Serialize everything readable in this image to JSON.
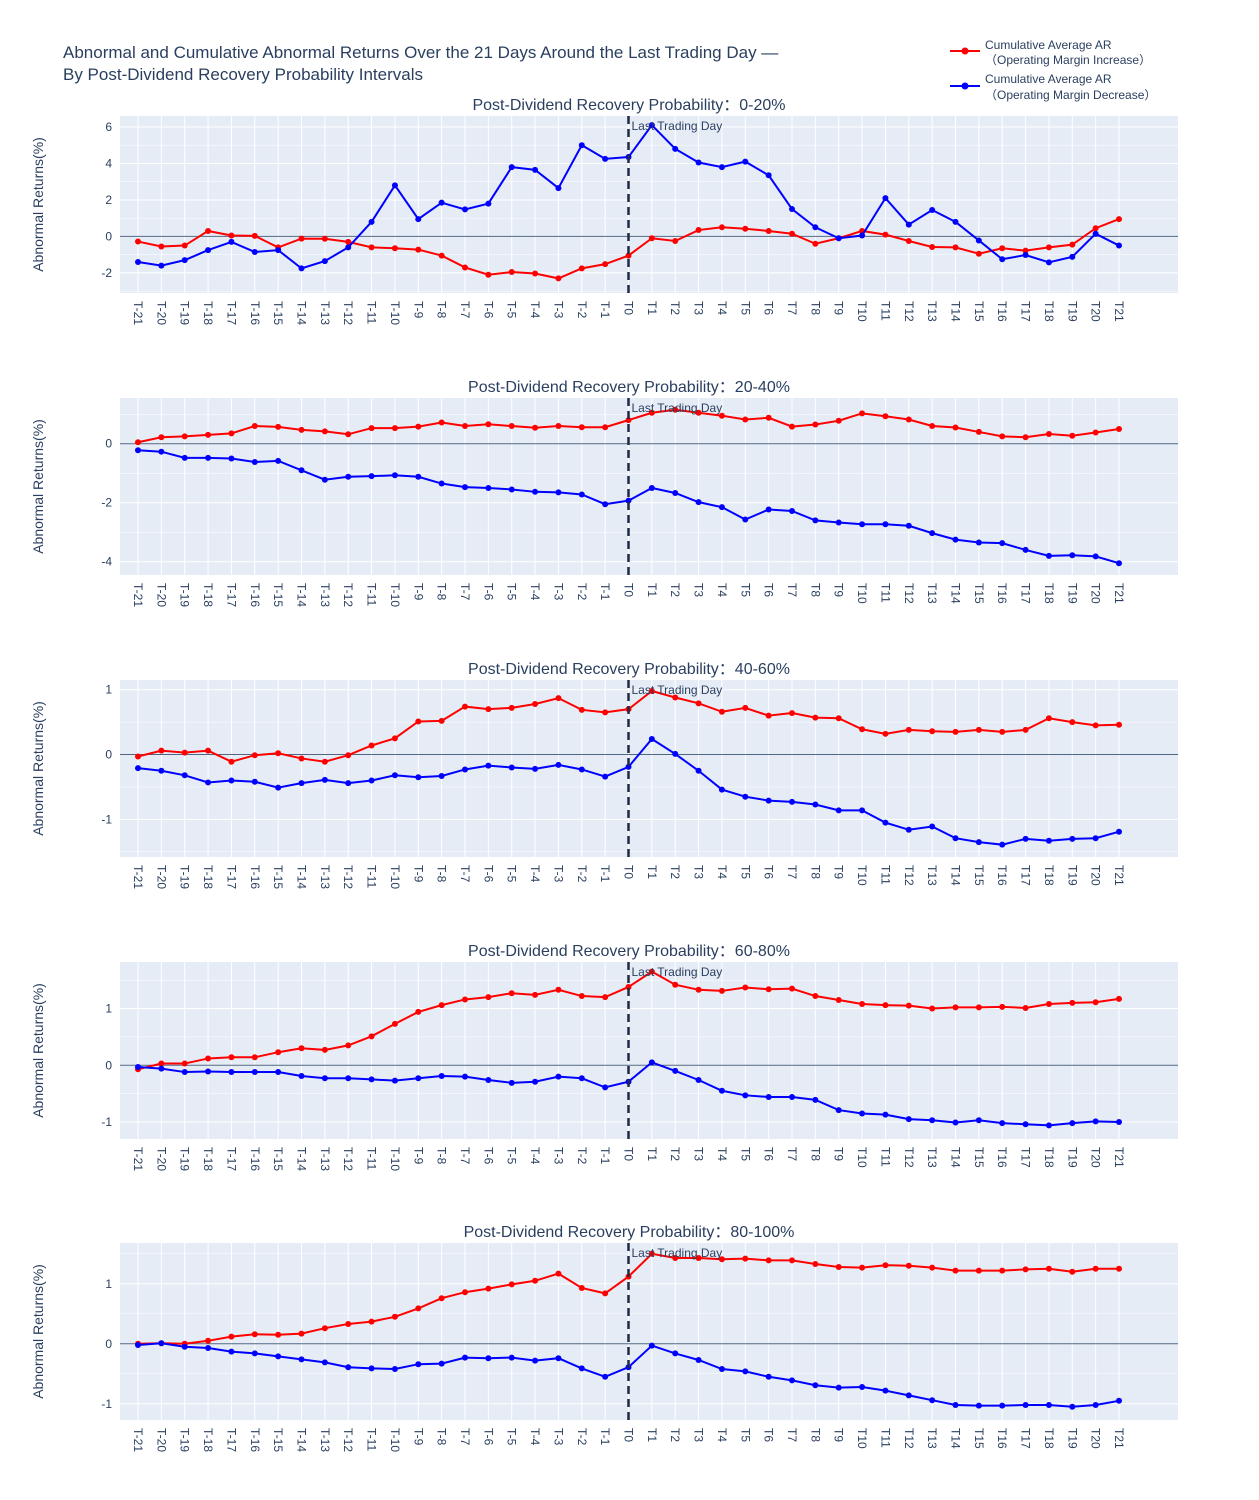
{
  "title_line1": "Abnormal and Cumulative Abnormal Returns Over the 21 Days Around the Last Trading Day —",
  "title_line2": "By Post-Dividend Recovery Probability Intervals",
  "legend": [
    {
      "line1": "Cumulative Average AR",
      "line2": "（Operating Margin Increase）",
      "color": "#ff0000"
    },
    {
      "line1": "Cumulative Average AR",
      "line2": "（Operating Margin Decrease）",
      "color": "#0000ff"
    }
  ],
  "annotation": "Last Trading Day",
  "chart_data": [
    {
      "type": "line",
      "title": "Post-Dividend Recovery Probability：0-20%",
      "ylabel": "Abnormal Returns(%)",
      "ylim": [
        -3.1,
        6.6
      ],
      "yticks": [
        -2,
        0,
        2,
        4,
        6
      ],
      "series": [
        {
          "name": "Cumulative Average AR （Operating Margin Increase）",
          "values": [
            -0.28,
            -0.55,
            -0.5,
            0.3,
            0.05,
            0.03,
            -0.6,
            -0.12,
            -0.13,
            -0.3,
            -0.6,
            -0.65,
            -0.72,
            -1.05,
            -1.7,
            -2.1,
            -1.95,
            -2.03,
            -2.3,
            -1.75,
            -1.52,
            -1.05,
            -0.1,
            -0.25,
            0.35,
            0.5,
            0.42,
            0.3,
            0.15,
            -0.4,
            -0.1,
            0.3,
            0.1,
            -0.25,
            -0.58,
            -0.6,
            -0.95,
            -0.65,
            -0.78,
            -0.6,
            -0.45,
            0.45,
            0.95
          ]
        },
        {
          "name": "Cumulative Average AR （Operating Margin Decrease）",
          "values": [
            -1.4,
            -1.6,
            -1.3,
            -0.75,
            -0.3,
            -0.85,
            -0.75,
            -1.75,
            -1.35,
            -0.6,
            0.8,
            2.8,
            0.95,
            1.85,
            1.48,
            1.8,
            3.8,
            3.65,
            2.65,
            5.0,
            4.25,
            4.35,
            6.1,
            4.8,
            4.05,
            3.8,
            4.1,
            3.35,
            1.5,
            0.5,
            -0.1,
            0.05,
            2.1,
            0.65,
            1.45,
            0.8,
            -0.22,
            -1.25,
            -1.02,
            -1.42,
            -1.12,
            0.15,
            -0.5
          ]
        }
      ]
    },
    {
      "type": "line",
      "title": "Post-Dividend Recovery Probability：20-40%",
      "ylabel": "Abnormal Returns(%)",
      "ylim": [
        -4.45,
        1.55
      ],
      "yticks": [
        -4,
        -2,
        0
      ],
      "series": [
        {
          "name": "Cumulative Average AR （Operating Margin Increase）",
          "values": [
            0.05,
            0.22,
            0.25,
            0.3,
            0.35,
            0.6,
            0.57,
            0.47,
            0.42,
            0.32,
            0.53,
            0.53,
            0.58,
            0.72,
            0.6,
            0.66,
            0.6,
            0.54,
            0.6,
            0.56,
            0.56,
            0.8,
            1.05,
            1.15,
            1.05,
            0.95,
            0.82,
            0.88,
            0.58,
            0.65,
            0.78,
            1.03,
            0.93,
            0.82,
            0.6,
            0.55,
            0.4,
            0.25,
            0.22,
            0.33,
            0.27,
            0.38,
            0.5
          ]
        },
        {
          "name": "Cumulative Average AR （Operating Margin Decrease）",
          "values": [
            -0.22,
            -0.27,
            -0.48,
            -0.48,
            -0.5,
            -0.62,
            -0.58,
            -0.9,
            -1.22,
            -1.12,
            -1.1,
            -1.07,
            -1.12,
            -1.35,
            -1.47,
            -1.5,
            -1.55,
            -1.63,
            -1.65,
            -1.72,
            -2.05,
            -1.93,
            -1.5,
            -1.67,
            -1.98,
            -2.15,
            -2.57,
            -2.23,
            -2.28,
            -2.6,
            -2.67,
            -2.73,
            -2.73,
            -2.78,
            -3.03,
            -3.25,
            -3.35,
            -3.37,
            -3.6,
            -3.8,
            -3.78,
            -3.82,
            -4.05
          ]
        }
      ]
    },
    {
      "type": "line",
      "title": "Post-Dividend Recovery Probability：40-60%",
      "ylabel": "Abnormal Returns(%)",
      "ylim": [
        -1.58,
        1.15
      ],
      "yticks": [
        -1,
        0,
        1
      ],
      "series": [
        {
          "name": "Cumulative Average AR （Operating Margin Increase）",
          "values": [
            -0.03,
            0.06,
            0.03,
            0.06,
            -0.11,
            -0.01,
            0.02,
            -0.06,
            -0.11,
            -0.01,
            0.14,
            0.25,
            0.51,
            0.52,
            0.74,
            0.7,
            0.72,
            0.78,
            0.87,
            0.69,
            0.65,
            0.7,
            0.98,
            0.88,
            0.79,
            0.66,
            0.72,
            0.6,
            0.64,
            0.57,
            0.56,
            0.39,
            0.32,
            0.38,
            0.36,
            0.35,
            0.38,
            0.35,
            0.38,
            0.56,
            0.5,
            0.45,
            0.46
          ]
        },
        {
          "name": "Cumulative Average AR （Operating Margin Decrease）",
          "values": [
            -0.21,
            -0.25,
            -0.32,
            -0.43,
            -0.4,
            -0.42,
            -0.51,
            -0.44,
            -0.39,
            -0.44,
            -0.4,
            -0.32,
            -0.35,
            -0.33,
            -0.23,
            -0.17,
            -0.2,
            -0.22,
            -0.16,
            -0.23,
            -0.34,
            -0.19,
            0.24,
            0.01,
            -0.25,
            -0.54,
            -0.65,
            -0.71,
            -0.73,
            -0.77,
            -0.86,
            -0.86,
            -1.05,
            -1.16,
            -1.11,
            -1.29,
            -1.35,
            -1.39,
            -1.3,
            -1.33,
            -1.3,
            -1.29,
            -1.19
          ]
        }
      ]
    },
    {
      "type": "line",
      "title": "Post-Dividend Recovery Probability：60-80%",
      "ylabel": "Abnormal Returns(%)",
      "ylim": [
        -1.3,
        1.82
      ],
      "yticks": [
        -1,
        0,
        1
      ],
      "series": [
        {
          "name": "Cumulative Average AR （Operating Margin Increase）",
          "values": [
            -0.07,
            0.03,
            0.03,
            0.12,
            0.14,
            0.14,
            0.23,
            0.3,
            0.27,
            0.35,
            0.51,
            0.73,
            0.94,
            1.06,
            1.16,
            1.2,
            1.27,
            1.24,
            1.33,
            1.22,
            1.2,
            1.38,
            1.65,
            1.42,
            1.33,
            1.31,
            1.37,
            1.34,
            1.35,
            1.22,
            1.15,
            1.08,
            1.06,
            1.05,
            1.0,
            1.02,
            1.02,
            1.03,
            1.01,
            1.08,
            1.1,
            1.11,
            1.17
          ]
        },
        {
          "name": "Cumulative Average AR （Operating Margin Decrease）",
          "values": [
            -0.03,
            -0.06,
            -0.12,
            -0.11,
            -0.12,
            -0.12,
            -0.12,
            -0.19,
            -0.23,
            -0.23,
            -0.25,
            -0.27,
            -0.23,
            -0.19,
            -0.2,
            -0.26,
            -0.31,
            -0.29,
            -0.2,
            -0.23,
            -0.39,
            -0.29,
            0.05,
            -0.1,
            -0.26,
            -0.45,
            -0.53,
            -0.56,
            -0.56,
            -0.61,
            -0.79,
            -0.85,
            -0.87,
            -0.95,
            -0.97,
            -1.01,
            -0.97,
            -1.02,
            -1.04,
            -1.06,
            -1.02,
            -0.99,
            -1.0
          ]
        }
      ]
    },
    {
      "type": "line",
      "title": "Post-Dividend Recovery Probability：80-100%",
      "ylabel": "Abnormal Returns(%)",
      "ylim": [
        -1.27,
        1.68
      ],
      "yticks": [
        -1,
        0,
        1
      ],
      "series": [
        {
          "name": "Cumulative Average AR （Operating Margin Increase）",
          "values": [
            0.0,
            0.01,
            0.0,
            0.05,
            0.12,
            0.16,
            0.15,
            0.17,
            0.26,
            0.33,
            0.37,
            0.45,
            0.59,
            0.76,
            0.86,
            0.92,
            0.99,
            1.05,
            1.17,
            0.93,
            0.84,
            1.12,
            1.5,
            1.43,
            1.43,
            1.41,
            1.42,
            1.39,
            1.39,
            1.33,
            1.28,
            1.27,
            1.31,
            1.3,
            1.27,
            1.22,
            1.22,
            1.22,
            1.24,
            1.25,
            1.2,
            1.25,
            1.25
          ]
        },
        {
          "name": "Cumulative Average AR （Operating Margin Decrease）",
          "values": [
            -0.02,
            0.01,
            -0.05,
            -0.07,
            -0.13,
            -0.16,
            -0.21,
            -0.26,
            -0.31,
            -0.39,
            -0.41,
            -0.42,
            -0.34,
            -0.33,
            -0.23,
            -0.24,
            -0.23,
            -0.28,
            -0.24,
            -0.41,
            -0.55,
            -0.39,
            -0.03,
            -0.16,
            -0.27,
            -0.42,
            -0.46,
            -0.55,
            -0.61,
            -0.69,
            -0.73,
            -0.72,
            -0.78,
            -0.86,
            -0.94,
            -1.02,
            -1.03,
            -1.03,
            -1.02,
            -1.02,
            -1.05,
            -1.02,
            -0.95
          ]
        }
      ]
    }
  ],
  "categories": [
    "T-21",
    "T-20",
    "T-19",
    "T-18",
    "T-17",
    "T-16",
    "T-15",
    "T-14",
    "T-13",
    "T-12",
    "T-11",
    "T-10",
    "T-9",
    "T-8",
    "T-7",
    "T-6",
    "T-5",
    "T-4",
    "T-3",
    "T-2",
    "T-1",
    "T0",
    "T1",
    "T2",
    "T3",
    "T4",
    "T5",
    "T6",
    "T7",
    "T8",
    "T9",
    "T10",
    "T11",
    "T12",
    "T13",
    "T14",
    "T15",
    "T16",
    "T17",
    "T18",
    "T19",
    "T20",
    "T21"
  ],
  "vline_at": "T0"
}
